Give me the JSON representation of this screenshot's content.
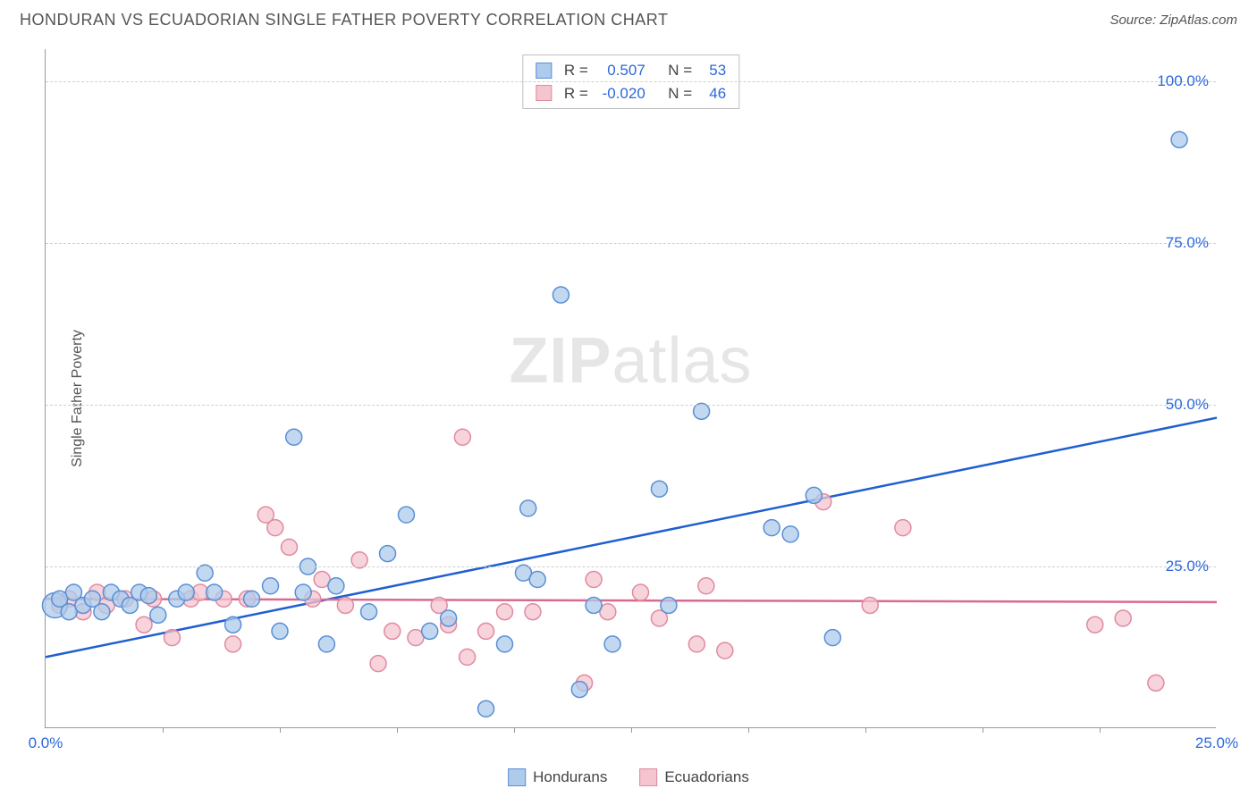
{
  "title": "HONDURAN VS ECUADORIAN SINGLE FATHER POVERTY CORRELATION CHART",
  "source_label": "Source: ZipAtlas.com",
  "ylabel": "Single Father Poverty",
  "watermark": {
    "part1": "ZIP",
    "part2": "atlas"
  },
  "chart": {
    "type": "scatter",
    "xlim": [
      0,
      25
    ],
    "ylim": [
      0,
      105
    ],
    "yticks": [
      25,
      50,
      75,
      100
    ],
    "ytick_labels": [
      "25.0%",
      "50.0%",
      "75.0%",
      "100.0%"
    ],
    "xticks_minor": [
      2.5,
      5,
      7.5,
      10,
      12.5,
      15,
      17.5,
      20,
      22.5
    ],
    "xtick_labels": [
      {
        "value": 0,
        "label": "0.0%"
      },
      {
        "value": 25,
        "label": "25.0%"
      }
    ],
    "colors": {
      "blue_fill": "#aecbeb",
      "blue_stroke": "#5a8fd6",
      "pink_fill": "#f4c4cf",
      "pink_stroke": "#e18aa0",
      "blue_line": "#1f5fd0",
      "pink_line": "#d96a8f",
      "axis_label": "#2b68d8",
      "grid": "#d0d0d0",
      "text": "#555555"
    },
    "marker_radius": 9,
    "marker_radius_large": 14,
    "line_width": 2.5,
    "series": [
      {
        "name": "Hondurans",
        "color_key": "blue",
        "stats": {
          "R": "0.507",
          "N": "53"
        },
        "trend": {
          "x1": 0,
          "y1": 11,
          "x2": 25,
          "y2": 48
        },
        "points": [
          {
            "x": 0.2,
            "y": 19,
            "r": 14
          },
          {
            "x": 0.3,
            "y": 20
          },
          {
            "x": 0.5,
            "y": 18
          },
          {
            "x": 0.6,
            "y": 21
          },
          {
            "x": 0.8,
            "y": 19
          },
          {
            "x": 1.0,
            "y": 20
          },
          {
            "x": 1.2,
            "y": 18
          },
          {
            "x": 1.4,
            "y": 21
          },
          {
            "x": 1.6,
            "y": 20
          },
          {
            "x": 1.8,
            "y": 19
          },
          {
            "x": 2.0,
            "y": 21
          },
          {
            "x": 2.2,
            "y": 20.5
          },
          {
            "x": 2.4,
            "y": 17.5
          },
          {
            "x": 2.8,
            "y": 20
          },
          {
            "x": 3.0,
            "y": 21
          },
          {
            "x": 3.4,
            "y": 24
          },
          {
            "x": 3.6,
            "y": 21
          },
          {
            "x": 4.0,
            "y": 16
          },
          {
            "x": 4.4,
            "y": 20
          },
          {
            "x": 4.8,
            "y": 22
          },
          {
            "x": 5.0,
            "y": 15
          },
          {
            "x": 5.3,
            "y": 45
          },
          {
            "x": 5.5,
            "y": 21
          },
          {
            "x": 5.6,
            "y": 25
          },
          {
            "x": 6.0,
            "y": 13
          },
          {
            "x": 6.2,
            "y": 22
          },
          {
            "x": 6.9,
            "y": 18
          },
          {
            "x": 7.3,
            "y": 27
          },
          {
            "x": 7.7,
            "y": 33
          },
          {
            "x": 8.2,
            "y": 15
          },
          {
            "x": 8.6,
            "y": 17
          },
          {
            "x": 9.4,
            "y": 3
          },
          {
            "x": 9.8,
            "y": 13
          },
          {
            "x": 10.2,
            "y": 24
          },
          {
            "x": 10.3,
            "y": 34
          },
          {
            "x": 10.5,
            "y": 23
          },
          {
            "x": 11.0,
            "y": 67
          },
          {
            "x": 11.4,
            "y": 6
          },
          {
            "x": 11.7,
            "y": 19
          },
          {
            "x": 12.1,
            "y": 13
          },
          {
            "x": 13.1,
            "y": 37
          },
          {
            "x": 13.3,
            "y": 19
          },
          {
            "x": 14.0,
            "y": 49
          },
          {
            "x": 15.5,
            "y": 31
          },
          {
            "x": 15.9,
            "y": 30
          },
          {
            "x": 16.4,
            "y": 36
          },
          {
            "x": 16.8,
            "y": 14
          },
          {
            "x": 24.2,
            "y": 91
          }
        ]
      },
      {
        "name": "Ecuadorians",
        "color_key": "pink",
        "stats": {
          "R": "-0.020",
          "N": "46"
        },
        "trend": {
          "x1": 0,
          "y1": 20,
          "x2": 25,
          "y2": 19.5
        },
        "points": [
          {
            "x": 0.3,
            "y": 19
          },
          {
            "x": 0.5,
            "y": 20
          },
          {
            "x": 0.8,
            "y": 18
          },
          {
            "x": 1.1,
            "y": 21
          },
          {
            "x": 1.3,
            "y": 19
          },
          {
            "x": 1.7,
            "y": 20
          },
          {
            "x": 2.1,
            "y": 16
          },
          {
            "x": 2.3,
            "y": 20
          },
          {
            "x": 2.7,
            "y": 14
          },
          {
            "x": 3.1,
            "y": 20
          },
          {
            "x": 3.3,
            "y": 21
          },
          {
            "x": 3.8,
            "y": 20
          },
          {
            "x": 4.0,
            "y": 13
          },
          {
            "x": 4.3,
            "y": 20
          },
          {
            "x": 4.7,
            "y": 33
          },
          {
            "x": 4.9,
            "y": 31
          },
          {
            "x": 5.2,
            "y": 28
          },
          {
            "x": 5.7,
            "y": 20
          },
          {
            "x": 5.9,
            "y": 23
          },
          {
            "x": 6.4,
            "y": 19
          },
          {
            "x": 6.7,
            "y": 26
          },
          {
            "x": 7.1,
            "y": 10
          },
          {
            "x": 7.4,
            "y": 15
          },
          {
            "x": 7.9,
            "y": 14
          },
          {
            "x": 8.4,
            "y": 19
          },
          {
            "x": 8.6,
            "y": 16
          },
          {
            "x": 8.9,
            "y": 45
          },
          {
            "x": 9.0,
            "y": 11
          },
          {
            "x": 9.4,
            "y": 15
          },
          {
            "x": 9.8,
            "y": 18
          },
          {
            "x": 10.4,
            "y": 18
          },
          {
            "x": 11.5,
            "y": 7
          },
          {
            "x": 11.7,
            "y": 23
          },
          {
            "x": 12.0,
            "y": 18
          },
          {
            "x": 12.7,
            "y": 21
          },
          {
            "x": 13.1,
            "y": 17
          },
          {
            "x": 13.9,
            "y": 13
          },
          {
            "x": 14.1,
            "y": 22
          },
          {
            "x": 14.5,
            "y": 12
          },
          {
            "x": 16.6,
            "y": 35
          },
          {
            "x": 17.6,
            "y": 19
          },
          {
            "x": 18.3,
            "y": 31
          },
          {
            "x": 22.4,
            "y": 16
          },
          {
            "x": 23.0,
            "y": 17
          },
          {
            "x": 23.7,
            "y": 7
          }
        ]
      }
    ]
  },
  "legend_bottom": [
    {
      "label": "Hondurans",
      "color_key": "blue"
    },
    {
      "label": "Ecuadorians",
      "color_key": "pink"
    }
  ]
}
